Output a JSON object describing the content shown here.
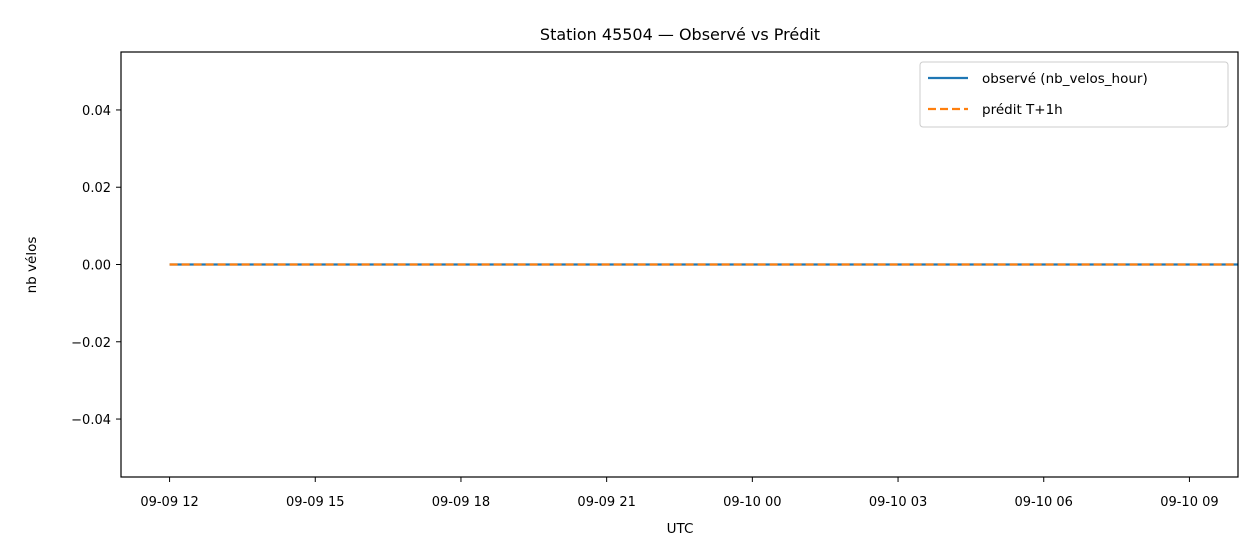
{
  "chart_data": {
    "type": "line",
    "title": "Station 45504 — Observé vs Prédit",
    "xlabel": "UTC",
    "ylabel": "nb vélos",
    "x_range": [
      "2024-09-09 11:00",
      "2024-09-10 10:00"
    ],
    "x_ticks": [
      "09-09 12",
      "09-09 15",
      "09-09 18",
      "09-09 21",
      "09-10 00",
      "09-10 03",
      "09-10 06",
      "09-10 09"
    ],
    "x_tick_values": [
      "2024-09-09 12:00",
      "2024-09-09 15:00",
      "2024-09-09 18:00",
      "2024-09-09 21:00",
      "2024-09-10 00:00",
      "2024-09-10 03:00",
      "2024-09-10 06:00",
      "2024-09-10 09:00"
    ],
    "ylim": [
      -0.055,
      0.055
    ],
    "y_ticks": [
      0.04,
      0.02,
      0.0,
      -0.02,
      -0.04
    ],
    "y_tick_labels": [
      "0.04",
      "0.02",
      "0.00",
      "−0.02",
      "−0.04"
    ],
    "grid": false,
    "legend_position": "top-right",
    "series": [
      {
        "name": "observé (nb_velos_hour)",
        "color": "#1f77b4",
        "style": "solid",
        "x": [
          "2024-09-09 12:00",
          "2024-09-10 10:00"
        ],
        "y": [
          0,
          0
        ]
      },
      {
        "name": "prédit T+1h",
        "color": "#ff7f0e",
        "style": "dashed",
        "x": [
          "2024-09-09 12:00",
          "2024-09-10 10:00"
        ],
        "y": [
          0,
          0
        ]
      }
    ]
  }
}
